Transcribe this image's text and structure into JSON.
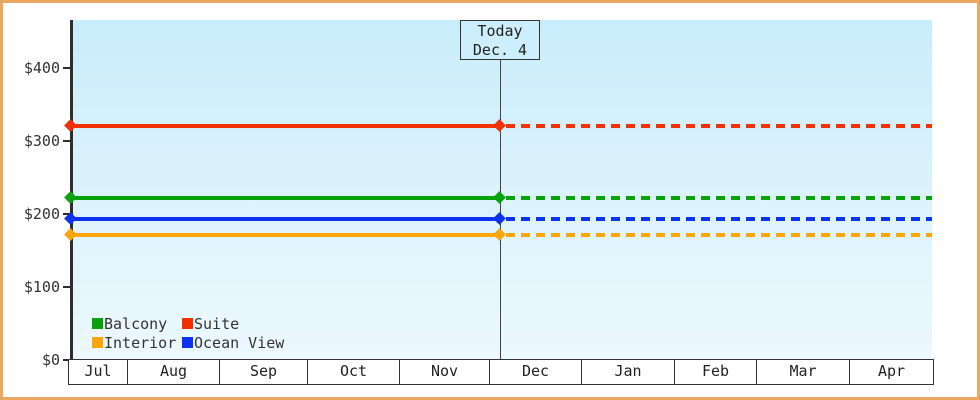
{
  "window": {
    "border_color": "#eba75d",
    "background_color": "#ffffff"
  },
  "chart_data": {
    "type": "line",
    "title": "",
    "x_axis": {
      "tick_labels": [
        "Jul",
        "Aug",
        "Sep",
        "Oct",
        "Nov",
        "Dec",
        "Jan",
        "Feb",
        "Mar",
        "Apr"
      ]
    },
    "y_axis": {
      "ticks": [
        {
          "label": "$400",
          "value": 400
        },
        {
          "label": "$300",
          "value": 300
        },
        {
          "label": "$200",
          "value": 200
        },
        {
          "label": "$100",
          "value": 100
        },
        {
          "label": "$0",
          "value": 0
        }
      ],
      "range": [
        0,
        450
      ],
      "grid": "off"
    },
    "today_annotation": {
      "line1": "Today",
      "line2": "Dec. 4"
    },
    "series": [
      {
        "name": "Suite",
        "value": 321,
        "color": "#f23000"
      },
      {
        "name": "Balcony",
        "value": 222,
        "color": "#0aa20a"
      },
      {
        "name": "Ocean View",
        "value": 193,
        "color": "#0b33f0"
      },
      {
        "name": "Interior",
        "value": 171,
        "color": "#ffa507"
      }
    ],
    "legend": {
      "position": "bottom-left",
      "items": [
        {
          "label": "Balcony",
          "color": "#0aa20a"
        },
        {
          "label": "Suite",
          "color": "#f23000"
        },
        {
          "label": "Interior",
          "color": "#ffa507"
        },
        {
          "label": "Ocean View",
          "color": "#0b33f0"
        }
      ]
    },
    "style_hints": {
      "before_today": "solid",
      "after_today": "dotted",
      "marker": "diamond",
      "plot_bg_top": "#c9edfb",
      "plot_bg_bottom": "#ecf9fe",
      "axis_color": "#2e2e2e"
    }
  }
}
